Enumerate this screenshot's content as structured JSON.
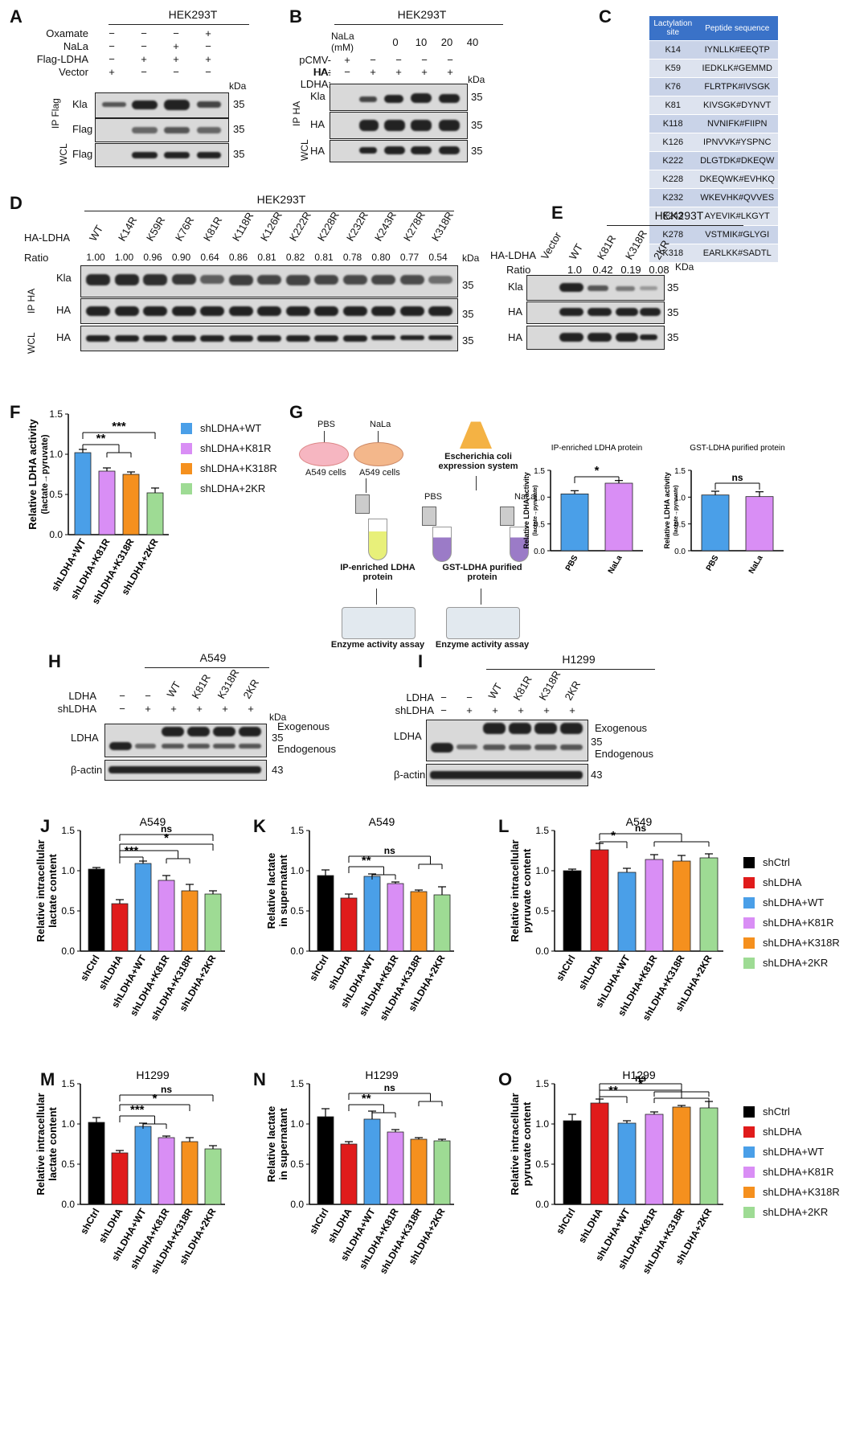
{
  "panels": {
    "A": {
      "label": "A",
      "cell": "HEK293T",
      "rows": [
        {
          "name": "Oxamate",
          "signs": [
            "−",
            "−",
            "−",
            "+"
          ]
        },
        {
          "name": "NaLa",
          "signs": [
            "−",
            "−",
            "+",
            "−"
          ]
        },
        {
          "name": "Flag-LDHA",
          "signs": [
            "−",
            "+",
            "+",
            "+"
          ]
        },
        {
          "name": "Vector",
          "signs": [
            "+",
            "−",
            "−",
            "−"
          ]
        }
      ],
      "kda": "kDa",
      "ip": "IP Flag",
      "wcl": "WCL",
      "blots": [
        {
          "name": "Kla",
          "mw": "35"
        },
        {
          "name": "Flag",
          "mw": "35"
        },
        {
          "name": "Flag",
          "mw": "35"
        }
      ]
    },
    "B": {
      "label": "B",
      "cell": "HEK293T",
      "conc_label": "NaLa (mM)",
      "concs": [
        "0",
        "10",
        "20",
        "40"
      ],
      "rows": [
        {
          "name": "pCMV-HA:",
          "signs": [
            "+",
            "−",
            "−",
            "−",
            "−"
          ]
        },
        {
          "name": "HA-LDHA:",
          "signs": [
            "−",
            "+",
            "+",
            "+",
            "+"
          ]
        }
      ],
      "kda": "kDa",
      "ip": "IP HA",
      "wcl": "WCL",
      "blots": [
        {
          "name": "Kla",
          "mw": "35"
        },
        {
          "name": "HA",
          "mw": "35"
        },
        {
          "name": "HA",
          "mw": "35"
        }
      ]
    },
    "C": {
      "label": "C",
      "headers": [
        "Lactylation site",
        "Peptide sequence"
      ],
      "rows": [
        [
          "K14",
          "IYNLLK#EEQTP"
        ],
        [
          "K59",
          "IEDKLK#GEMMD"
        ],
        [
          "K76",
          "FLRTPK#IVSGK"
        ],
        [
          "K81",
          "KIVSGK#DYNVT"
        ],
        [
          "K118",
          "NVNIFK#FIIPN"
        ],
        [
          "K126",
          "IPNVVK#YSPNC"
        ],
        [
          "K222",
          "DLGTDK#DKEQW"
        ],
        [
          "K228",
          "DKEQWK#EVHKQ"
        ],
        [
          "K232",
          "WKEVHK#QVVES"
        ],
        [
          "K243",
          "AYEVIK#LKGYT"
        ],
        [
          "K278",
          "VSTMIK#GLYGI"
        ],
        [
          "K318",
          "EARLKK#SADTL"
        ]
      ]
    },
    "D": {
      "label": "D",
      "cell": "HEK293T",
      "row_label": "HA-LDHA",
      "ratio_label": "Ratio",
      "lanes": [
        "WT",
        "K14R",
        "K59R",
        "K76R",
        "K81R",
        "K118R",
        "K126R",
        "K222R",
        "K228R",
        "K232R",
        "K243R",
        "K278R",
        "K318R"
      ],
      "ratios": [
        "1.00",
        "1.00",
        "0.96",
        "0.90",
        "0.64",
        "0.86",
        "0.81",
        "0.82",
        "0.81",
        "0.78",
        "0.80",
        "0.77",
        "0.54"
      ],
      "kda": "kDa",
      "ip": "IP HA",
      "wcl": "WCL",
      "blots": [
        {
          "name": "Kla",
          "mw": "35"
        },
        {
          "name": "HA",
          "mw": "35"
        },
        {
          "name": "HA",
          "mw": "35"
        }
      ]
    },
    "E": {
      "label": "E",
      "cell": "HEK293T",
      "row_label": "HA-LDHA",
      "ratio_label": "Ratio",
      "lanes": [
        "Vector",
        "WT",
        "K81R",
        "K318R",
        "2KR"
      ],
      "ratios": [
        "1.0",
        "0.42",
        "0.19",
        "0.08"
      ],
      "kda": "KDa",
      "ip": "IP HA",
      "wcl": "WCL",
      "blots": [
        {
          "name": "Kla",
          "mw": "35"
        },
        {
          "name": "HA",
          "mw": "35"
        },
        {
          "name": "HA",
          "mw": "35"
        }
      ]
    },
    "F": {
      "label": "F"
    },
    "G": {
      "label": "G",
      "pbs": "PBS",
      "nala": "NaLa",
      "a549": "A549 cells",
      "ecoli": "Escherichia coli expression system",
      "ip_enriched": "IP-enriched LDHA protein",
      "gst": "GST-LDHA purified protein",
      "assay": "Enzyme activity assay"
    },
    "H": {
      "label": "H",
      "cell": "A549",
      "rows": [
        {
          "name": "LDHA",
          "signs": [
            "−",
            "−",
            "WT",
            "K81R",
            "K318R",
            "2KR"
          ]
        },
        {
          "name": "shLDHA",
          "signs": [
            "−",
            "+",
            "+",
            "+",
            "+",
            "+"
          ]
        }
      ],
      "kda": "kDa",
      "blots": [
        {
          "name": "LDHA",
          "mw": "35"
        },
        {
          "name": "β-actin",
          "mw": "43"
        }
      ],
      "exo": "Exogenous",
      "endo": "Endogenous"
    },
    "I": {
      "label": "I",
      "cell": "H1299",
      "rows": [
        {
          "name": "LDHA",
          "signs": [
            "−",
            "−",
            "WT",
            "K81R",
            "K318R",
            "2KR"
          ]
        },
        {
          "name": "shLDHA",
          "signs": [
            "−",
            "+",
            "+",
            "+",
            "+",
            "+"
          ]
        }
      ],
      "blots": [
        {
          "name": "LDHA",
          "mw": "35"
        },
        {
          "name": "β-actin",
          "mw": "43"
        }
      ],
      "exo": "Exogenous",
      "endo": "Endogenous"
    },
    "J": {
      "label": "J"
    },
    "K": {
      "label": "K"
    },
    "L": {
      "label": "L"
    },
    "M": {
      "label": "M"
    },
    "N": {
      "label": "N"
    },
    "O": {
      "label": "O"
    }
  },
  "legend_F": [
    {
      "name": "shLDHA+WT",
      "color": "#4a9fe8"
    },
    {
      "name": "shLDHA+K81R",
      "color": "#d98ef5"
    },
    {
      "name": "shLDHA+K318R",
      "color": "#f5901e"
    },
    {
      "name": "shLDHA+2KR",
      "color": "#9edb94"
    }
  ],
  "legend_six": [
    {
      "name": "shCtrl",
      "color": "#000000"
    },
    {
      "name": "shLDHA",
      "color": "#e01b1b"
    },
    {
      "name": "shLDHA+WT",
      "color": "#4a9fe8"
    },
    {
      "name": "shLDHA+K81R",
      "color": "#d98ef5"
    },
    {
      "name": "shLDHA+K318R",
      "color": "#f5901e"
    },
    {
      "name": "shLDHA+2KR",
      "color": "#9edb94"
    }
  ],
  "chart_data": [
    {
      "id": "F",
      "type": "bar",
      "title": "",
      "ylabel": "Relative LDHA activity (lactate→pyruvate)",
      "ylim": [
        0,
        1.5
      ],
      "yticks": [
        "0.0",
        "0.5",
        "1.0",
        "1.5"
      ],
      "categories": [
        "shLDHA+WT",
        "shLDHA+K81R",
        "shLDHA+K318R",
        "shLDHA+2KR"
      ],
      "values": [
        1.02,
        0.79,
        0.75,
        0.52
      ],
      "errors": [
        0.04,
        0.04,
        0.03,
        0.06
      ],
      "colors": [
        "#4a9fe8",
        "#d98ef5",
        "#f5901e",
        "#9edb94"
      ],
      "sig": [
        {
          "text": "**",
          "from": 0,
          "to": [
            1,
            2
          ],
          "level": 1.12
        },
        {
          "text": "***",
          "from": 0,
          "to": [
            3
          ],
          "level": 1.27
        }
      ]
    },
    {
      "id": "G1",
      "type": "bar",
      "title": "IP-enriched LDHA protein",
      "ylabel": "Relative LDHA activity (lactate→pyruvate)",
      "ylim": [
        0,
        1.5
      ],
      "yticks": [
        "0.0",
        "0.5",
        "1.0",
        "1.5"
      ],
      "categories": [
        "PBS",
        "NaLa"
      ],
      "values": [
        1.06,
        1.26
      ],
      "errors": [
        0.06,
        0.05
      ],
      "colors": [
        "#4a9fe8",
        "#d98ef5"
      ],
      "sig": [
        {
          "text": "*",
          "from": 0,
          "to": [
            1
          ],
          "level": 1.38
        }
      ]
    },
    {
      "id": "G2",
      "type": "bar",
      "title": "GST-LDHA purified protein",
      "ylabel": "Relative LDHA activity (lactate→pyruvate)",
      "ylim": [
        0,
        1.5
      ],
      "yticks": [
        "0.0",
        "0.5",
        "1.0",
        "1.5"
      ],
      "categories": [
        "PBS",
        "NaLa"
      ],
      "values": [
        1.04,
        1.01
      ],
      "errors": [
        0.07,
        0.09
      ],
      "colors": [
        "#4a9fe8",
        "#d98ef5"
      ],
      "sig": [
        {
          "text": "ns",
          "from": 0,
          "to": [
            1
          ],
          "level": 1.26
        }
      ]
    },
    {
      "id": "J",
      "type": "bar",
      "title": "A549",
      "ylabel": "Relative intracellular lactate content",
      "ylim": [
        0,
        1.5
      ],
      "yticks": [
        "0.0",
        "0.5",
        "1.0",
        "1.5"
      ],
      "categories": [
        "shCtrl",
        "shLDHA",
        "shLDHA+WT",
        "shLDHA+K81R",
        "shLDHA+K318R",
        "shLDHA+2KR"
      ],
      "values": [
        1.02,
        0.59,
        1.09,
        0.88,
        0.75,
        0.71
      ],
      "errors": [
        0.02,
        0.05,
        0.03,
        0.06,
        0.08,
        0.04
      ],
      "colors": [
        "#000000",
        "#e01b1b",
        "#4a9fe8",
        "#d98ef5",
        "#f5901e",
        "#9edb94"
      ],
      "sig": [
        {
          "text": "***",
          "from": 1,
          "to": [
            2
          ],
          "level": 1.17
        },
        {
          "text": "",
          "from": 1,
          "to": [
            3,
            4
          ],
          "level": 1.25
        },
        {
          "text": "*",
          "from": 1,
          "to": [
            5
          ],
          "level": 1.33
        },
        {
          "text": "ns",
          "from": 1,
          "to": [
            5
          ],
          "level": 1.45
        }
      ]
    },
    {
      "id": "K",
      "type": "bar",
      "title": "A549",
      "ylabel": "Relative lactate in supernatant",
      "ylim": [
        0,
        1.5
      ],
      "yticks": [
        "0.0",
        "0.5",
        "1.0",
        "1.5"
      ],
      "categories": [
        "shCtrl",
        "shLDHA",
        "shLDHA+WT",
        "shLDHA+K81R",
        "shLDHA+K318R",
        "shLDHA+2KR"
      ],
      "values": [
        0.94,
        0.66,
        0.93,
        0.84,
        0.74,
        0.7
      ],
      "errors": [
        0.07,
        0.05,
        0.03,
        0.02,
        0.02,
        0.1
      ],
      "colors": [
        "#000000",
        "#e01b1b",
        "#4a9fe8",
        "#d98ef5",
        "#f5901e",
        "#9edb94"
      ],
      "sig": [
        {
          "text": "**",
          "from": 1,
          "to": [
            2,
            3
          ],
          "level": 1.05
        },
        {
          "text": "ns",
          "from": 1,
          "to": [
            4,
            5
          ],
          "level": 1.18
        }
      ]
    },
    {
      "id": "L",
      "type": "bar",
      "title": "A549",
      "ylabel": "Relative intracellular pyruvate content",
      "ylim": [
        0,
        1.5
      ],
      "yticks": [
        "0.0",
        "0.5",
        "1.0",
        "1.5"
      ],
      "categories": [
        "shCtrl",
        "shLDHA",
        "shLDHA+WT",
        "shLDHA+K81R",
        "shLDHA+K318R",
        "shLDHA+2KR"
      ],
      "values": [
        1.0,
        1.26,
        0.98,
        1.14,
        1.12,
        1.16
      ],
      "errors": [
        0.02,
        0.08,
        0.05,
        0.06,
        0.07,
        0.05
      ],
      "colors": [
        "#000000",
        "#e01b1b",
        "#4a9fe8",
        "#d98ef5",
        "#f5901e",
        "#9edb94"
      ],
      "sig": [
        {
          "text": "*",
          "from": 1,
          "to": [
            2
          ],
          "level": 1.36
        },
        {
          "text": "ns",
          "from": 1,
          "to": [
            3,
            4,
            5
          ],
          "level": 1.46
        }
      ]
    },
    {
      "id": "M",
      "type": "bar",
      "title": "H1299",
      "ylabel": "Relative intracellular lactate content",
      "ylim": [
        0,
        1.5
      ],
      "yticks": [
        "0.0",
        "0.5",
        "1.0",
        "1.5"
      ],
      "categories": [
        "shCtrl",
        "shLDHA",
        "shLDHA+WT",
        "shLDHA+K81R",
        "shLDHA+K318R",
        "shLDHA+2KR"
      ],
      "values": [
        1.02,
        0.64,
        0.97,
        0.83,
        0.78,
        0.69
      ],
      "errors": [
        0.06,
        0.03,
        0.04,
        0.02,
        0.05,
        0.04
      ],
      "colors": [
        "#000000",
        "#e01b1b",
        "#4a9fe8",
        "#d98ef5",
        "#f5901e",
        "#9edb94"
      ],
      "sig": [
        {
          "text": "***",
          "from": 1,
          "to": [
            2,
            3
          ],
          "level": 1.1
        },
        {
          "text": "*",
          "from": 1,
          "to": [
            4
          ],
          "level": 1.24
        },
        {
          "text": "ns",
          "from": 1,
          "to": [
            5
          ],
          "level": 1.36
        }
      ]
    },
    {
      "id": "N",
      "type": "bar",
      "title": "H1299",
      "ylabel": "Relative lactate in supernatant",
      "ylim": [
        0,
        1.5
      ],
      "yticks": [
        "0.0",
        "0.5",
        "1.0",
        "1.5"
      ],
      "categories": [
        "shCtrl",
        "shLDHA",
        "shLDHA+WT",
        "shLDHA+K81R",
        "shLDHA+K318R",
        "shLDHA+2KR"
      ],
      "values": [
        1.09,
        0.75,
        1.06,
        0.9,
        0.81,
        0.79
      ],
      "errors": [
        0.1,
        0.03,
        0.1,
        0.03,
        0.02,
        0.02
      ],
      "colors": [
        "#000000",
        "#e01b1b",
        "#4a9fe8",
        "#d98ef5",
        "#f5901e",
        "#9edb94"
      ],
      "sig": [
        {
          "text": "**",
          "from": 1,
          "to": [
            2,
            3
          ],
          "level": 1.24
        },
        {
          "text": "ns",
          "from": 1,
          "to": [
            4,
            5
          ],
          "level": 1.38
        }
      ]
    },
    {
      "id": "O",
      "type": "bar",
      "title": "H1299",
      "ylabel": "Relative intracellular pyruvate content",
      "ylim": [
        0,
        1.5
      ],
      "yticks": [
        "0.0",
        "0.5",
        "1.0",
        "1.5"
      ],
      "categories": [
        "shCtrl",
        "shLDHA",
        "shLDHA+WT",
        "shLDHA+K81R",
        "shLDHA+K318R",
        "shLDHA+2KR"
      ],
      "values": [
        1.04,
        1.26,
        1.01,
        1.12,
        1.21,
        1.2
      ],
      "errors": [
        0.08,
        0.05,
        0.03,
        0.03,
        0.02,
        0.08
      ],
      "colors": [
        "#000000",
        "#e01b1b",
        "#4a9fe8",
        "#d98ef5",
        "#f5901e",
        "#9edb94"
      ],
      "sig": [
        {
          "text": "**",
          "from": 1,
          "to": [
            2
          ],
          "level": 1.34
        },
        {
          "text": "*",
          "from": 1,
          "to": [
            3,
            4,
            5
          ],
          "level": 1.42
        },
        {
          "text": "ns",
          "from": 1,
          "to": [
            3,
            4,
            5
          ],
          "level": 1.5
        }
      ]
    }
  ]
}
